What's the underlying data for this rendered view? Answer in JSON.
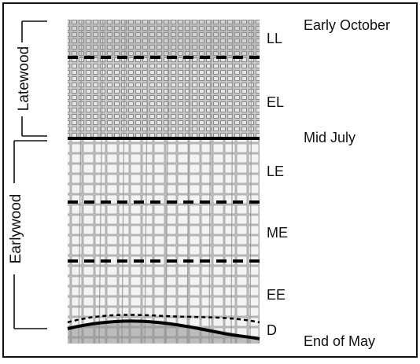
{
  "bracket_labels": {
    "latewood": "Latewood",
    "earlywood": "Earlywood"
  },
  "zone_labels": {
    "ll": "LL",
    "el": "EL",
    "le": "LE",
    "me": "ME",
    "ee": "EE",
    "d": "D"
  },
  "date_labels": {
    "early_october": "Early October",
    "mid_july": "Mid July",
    "end_of_may": "End of May"
  },
  "colors": {
    "frame": "#111111",
    "latewood_tissue": "#b9b9b9",
    "earlywood_tissue": "#e6e6e6",
    "cell_wall": "#9a9a9a",
    "boundary_line": "#000000"
  }
}
